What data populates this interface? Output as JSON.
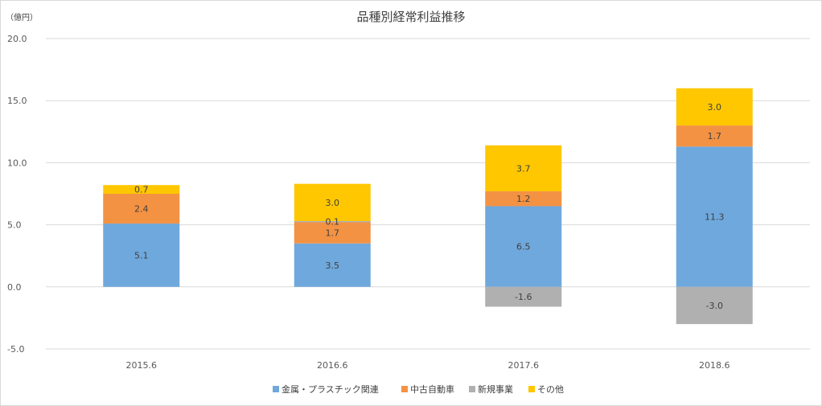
{
  "chart_data": {
    "type": "bar",
    "stacked": true,
    "title": "品種別経常利益推移",
    "ylabel": "（億円）",
    "categories": [
      "2015.6",
      "2016.6",
      "2017.6",
      "2018.6"
    ],
    "series": [
      {
        "name": "金属・プラスチック関連",
        "color": "#6fa8dc",
        "values": [
          5.1,
          3.5,
          6.5,
          11.3
        ]
      },
      {
        "name": "中古自動車",
        "color": "#f39243",
        "values": [
          2.4,
          1.7,
          1.2,
          1.7
        ]
      },
      {
        "name": "新規事業",
        "color": "#b0b0b0",
        "values": [
          0,
          0.1,
          -1.6,
          -3.0
        ]
      },
      {
        "name": "その他",
        "color": "#ffc700",
        "values": [
          0.7,
          3.0,
          3.7,
          3.0
        ]
      }
    ],
    "data_labels": [
      [
        "5.1",
        "2.4",
        "",
        "0.7"
      ],
      [
        "3.5",
        "1.7",
        "0.1",
        "3.0"
      ],
      [
        "6.5",
        "1.2",
        "-1.6",
        "3.7"
      ],
      [
        "11.3",
        "1.7",
        "-3.0",
        "3.0"
      ]
    ],
    "yticks": [
      "20.0",
      "15.0",
      "10.0",
      "5.0",
      "0.0",
      "-5.0"
    ],
    "ylim": [
      -5,
      20
    ],
    "grid": true,
    "legend": "bottom"
  }
}
